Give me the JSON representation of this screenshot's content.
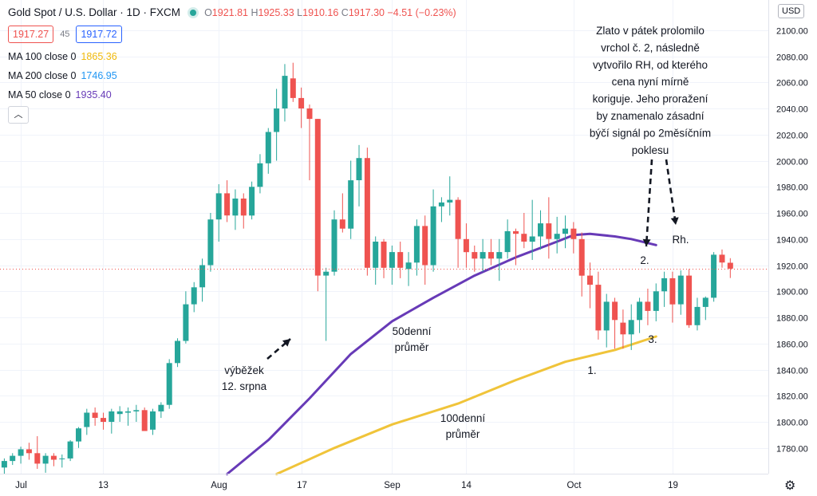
{
  "header": {
    "symbol": "Gold Spot / U.S. Dollar · 1D · FXCM",
    "open_label": "O",
    "open": "1921.81",
    "high_label": "H",
    "high": "1925.33",
    "low_label": "L",
    "low": "1910.16",
    "close_label": "C",
    "close": "1917.30",
    "change": "−4.51 (−0.23%)"
  },
  "quote": {
    "bid": "1917.27",
    "spread": "45",
    "ask": "1917.72"
  },
  "indicators": [
    {
      "label": "MA 100 close 0",
      "value": "1865.36",
      "color": "#f0b90b"
    },
    {
      "label": "MA 200 close 0",
      "value": "1746.95",
      "color": "#2196f3"
    },
    {
      "label": "MA 50 close 0",
      "value": "1935.40",
      "color": "#673ab7"
    }
  ],
  "currency_button": "USD",
  "icons": {
    "collapse": "chevron-up-icon",
    "settings": "gear-icon"
  },
  "chart_data": {
    "type": "candlestick",
    "ylim": [
      1760,
      2120
    ],
    "y_ticks": [
      "1780.00",
      "1800.00",
      "1820.00",
      "1840.00",
      "1860.00",
      "1880.00",
      "1900.00",
      "1920.00",
      "1940.00",
      "1960.00",
      "1980.00",
      "2000.00",
      "2020.00",
      "2040.00",
      "2060.00",
      "2080.00",
      "2100.00"
    ],
    "x_ticks": [
      {
        "label": "Jul",
        "index": 2
      },
      {
        "label": "13",
        "index": 12
      },
      {
        "label": "Aug",
        "index": 26
      },
      {
        "label": "17",
        "index": 36
      },
      {
        "label": "Sep",
        "index": 47
      },
      {
        "label": "14",
        "index": 56
      },
      {
        "label": "Oct",
        "index": 69
      },
      {
        "label": "19",
        "index": 81
      }
    ],
    "colors": {
      "up": "#26a69a",
      "down": "#ef5350",
      "ma50": "#673ab7",
      "ma100": "#f0c43a",
      "last_price": "#ef5350"
    },
    "last_price": 1917.3,
    "last_price_label": "1917.30",
    "candles": [
      [
        1765,
        1772,
        1760,
        1770
      ],
      [
        1770,
        1776,
        1767,
        1774
      ],
      [
        1774,
        1781,
        1768,
        1779
      ],
      [
        1779,
        1784,
        1771,
        1776
      ],
      [
        1776,
        1789,
        1764,
        1768
      ],
      [
        1768,
        1776,
        1761,
        1774
      ],
      [
        1774,
        1776,
        1766,
        1771
      ],
      [
        1772,
        1775,
        1765,
        1772
      ],
      [
        1772,
        1786,
        1770,
        1785
      ],
      [
        1785,
        1796,
        1780,
        1795
      ],
      [
        1796,
        1810,
        1790,
        1807
      ],
      [
        1807,
        1811,
        1797,
        1803
      ],
      [
        1803,
        1807,
        1794,
        1800
      ],
      [
        1800,
        1810,
        1791,
        1808
      ],
      [
        1806,
        1812,
        1800,
        1808
      ],
      [
        1807,
        1811,
        1797,
        1808
      ],
      [
        1808,
        1813,
        1800,
        1809
      ],
      [
        1809,
        1811,
        1793,
        1793
      ],
      [
        1794,
        1810,
        1790,
        1808
      ],
      [
        1808,
        1815,
        1803,
        1813
      ],
      [
        1813,
        1848,
        1810,
        1845
      ],
      [
        1845,
        1864,
        1842,
        1862
      ],
      [
        1862,
        1900,
        1860,
        1890
      ],
      [
        1890,
        1907,
        1884,
        1903
      ],
      [
        1903,
        1925,
        1892,
        1920
      ],
      [
        1920,
        1960,
        1915,
        1955
      ],
      [
        1955,
        1982,
        1938,
        1975
      ],
      [
        1975,
        1985,
        1953,
        1958
      ],
      [
        1958,
        1978,
        1947,
        1971
      ],
      [
        1971,
        1975,
        1948,
        1958
      ],
      [
        1958,
        1984,
        1955,
        1980
      ],
      [
        1980,
        2005,
        1975,
        1998
      ],
      [
        1998,
        2025,
        1990,
        2022
      ],
      [
        2022,
        2055,
        2000,
        2040
      ],
      [
        2040,
        2074,
        2030,
        2065
      ],
      [
        2063,
        2075,
        2045,
        2048
      ],
      [
        2048,
        2056,
        2025,
        2040
      ],
      [
        2040,
        2043,
        1985,
        2032
      ],
      [
        2032,
        2032,
        1900,
        1912
      ],
      [
        1912,
        1918,
        1862,
        1915
      ],
      [
        1915,
        1962,
        1912,
        1955
      ],
      [
        1955,
        1975,
        1945,
        1948
      ],
      [
        1948,
        2000,
        1940,
        1985
      ],
      [
        1985,
        2012,
        1965,
        2002
      ],
      [
        2002,
        2010,
        1912,
        1918
      ],
      [
        1918,
        1942,
        1905,
        1938
      ],
      [
        1938,
        1940,
        1910,
        1918
      ],
      [
        1918,
        1935,
        1905,
        1930
      ],
      [
        1930,
        1938,
        1910,
        1918
      ],
      [
        1917,
        1930,
        1904,
        1922
      ],
      [
        1922,
        1955,
        1912,
        1950
      ],
      [
        1950,
        1958,
        1905,
        1920
      ],
      [
        1920,
        1978,
        1915,
        1965
      ],
      [
        1965,
        1972,
        1953,
        1968
      ],
      [
        1968,
        1988,
        1958,
        1970
      ],
      [
        1970,
        1972,
        1918,
        1940
      ],
      [
        1940,
        1952,
        1918,
        1930
      ],
      [
        1930,
        1935,
        1915,
        1925
      ],
      [
        1925,
        1940,
        1915,
        1930
      ],
      [
        1930,
        1940,
        1920,
        1925
      ],
      [
        1925,
        1940,
        1908,
        1930
      ],
      [
        1930,
        1955,
        1925,
        1946
      ],
      [
        1946,
        1948,
        1920,
        1944
      ],
      [
        1944,
        1960,
        1933,
        1938
      ],
      [
        1938,
        1970,
        1924,
        1942
      ],
      [
        1942,
        1962,
        1932,
        1952
      ],
      [
        1952,
        1972,
        1925,
        1940
      ],
      [
        1940,
        1957,
        1929,
        1944
      ],
      [
        1944,
        1958,
        1933,
        1948
      ],
      [
        1948,
        1953,
        1929,
        1940
      ],
      [
        1940,
        1945,
        1896,
        1912
      ],
      [
        1912,
        1922,
        1887,
        1905
      ],
      [
        1905,
        1915,
        1863,
        1870
      ],
      [
        1870,
        1898,
        1857,
        1892
      ],
      [
        1892,
        1895,
        1856,
        1878
      ],
      [
        1876,
        1886,
        1856,
        1867
      ],
      [
        1867,
        1890,
        1855,
        1878
      ],
      [
        1878,
        1895,
        1868,
        1892
      ],
      [
        1892,
        1902,
        1874,
        1885
      ],
      [
        1885,
        1906,
        1877,
        1900
      ],
      [
        1900,
        1915,
        1888,
        1910
      ],
      [
        1910,
        1915,
        1876,
        1890
      ],
      [
        1890,
        1916,
        1882,
        1912
      ],
      [
        1912,
        1917,
        1872,
        1874
      ],
      [
        1874,
        1895,
        1870,
        1888
      ],
      [
        1888,
        1896,
        1878,
        1895
      ],
      [
        1895,
        1930,
        1892,
        1928
      ],
      [
        1928,
        1932,
        1918,
        1922
      ],
      [
        1921.81,
        1925.33,
        1910.16,
        1917.3
      ]
    ],
    "ma50": [
      [
        27,
        1760
      ],
      [
        32,
        1786
      ],
      [
        37,
        1818
      ],
      [
        42,
        1852
      ],
      [
        47,
        1877
      ],
      [
        52,
        1895
      ],
      [
        57,
        1912
      ],
      [
        62,
        1926
      ],
      [
        67,
        1938
      ],
      [
        69,
        1943
      ],
      [
        71,
        1944
      ],
      [
        74,
        1942
      ],
      [
        76,
        1940
      ],
      [
        79,
        1935.4
      ]
    ],
    "ma100": [
      [
        33,
        1760
      ],
      [
        40,
        1780
      ],
      [
        47,
        1798
      ],
      [
        55,
        1814
      ],
      [
        62,
        1832
      ],
      [
        68,
        1846
      ],
      [
        74,
        1855
      ],
      [
        79,
        1865.36
      ]
    ],
    "annotations": [
      {
        "id": "main-note",
        "lines": [
          "Zlato v pátek prolomilo",
          "vrchol č. 2, následně",
          "vytvořilo RH, od kterého",
          "cena nyní mírně",
          "koriguje. Jeho proražení",
          "by znamenalo zásadní",
          "býčí signál po 2měsíčním",
          "poklesu"
        ]
      },
      {
        "id": "spike-note",
        "lines": [
          "výběžek",
          "12. srpna"
        ]
      },
      {
        "id": "ma50-note",
        "lines": [
          "50denní",
          "průměr"
        ]
      },
      {
        "id": "ma100-note",
        "lines": [
          "100denní",
          "průměr"
        ]
      },
      {
        "id": "point-1",
        "lines": [
          "1."
        ]
      },
      {
        "id": "point-2",
        "lines": [
          "2."
        ]
      },
      {
        "id": "point-3",
        "lines": [
          "3."
        ]
      },
      {
        "id": "point-rh",
        "lines": [
          "Rh."
        ]
      }
    ]
  }
}
